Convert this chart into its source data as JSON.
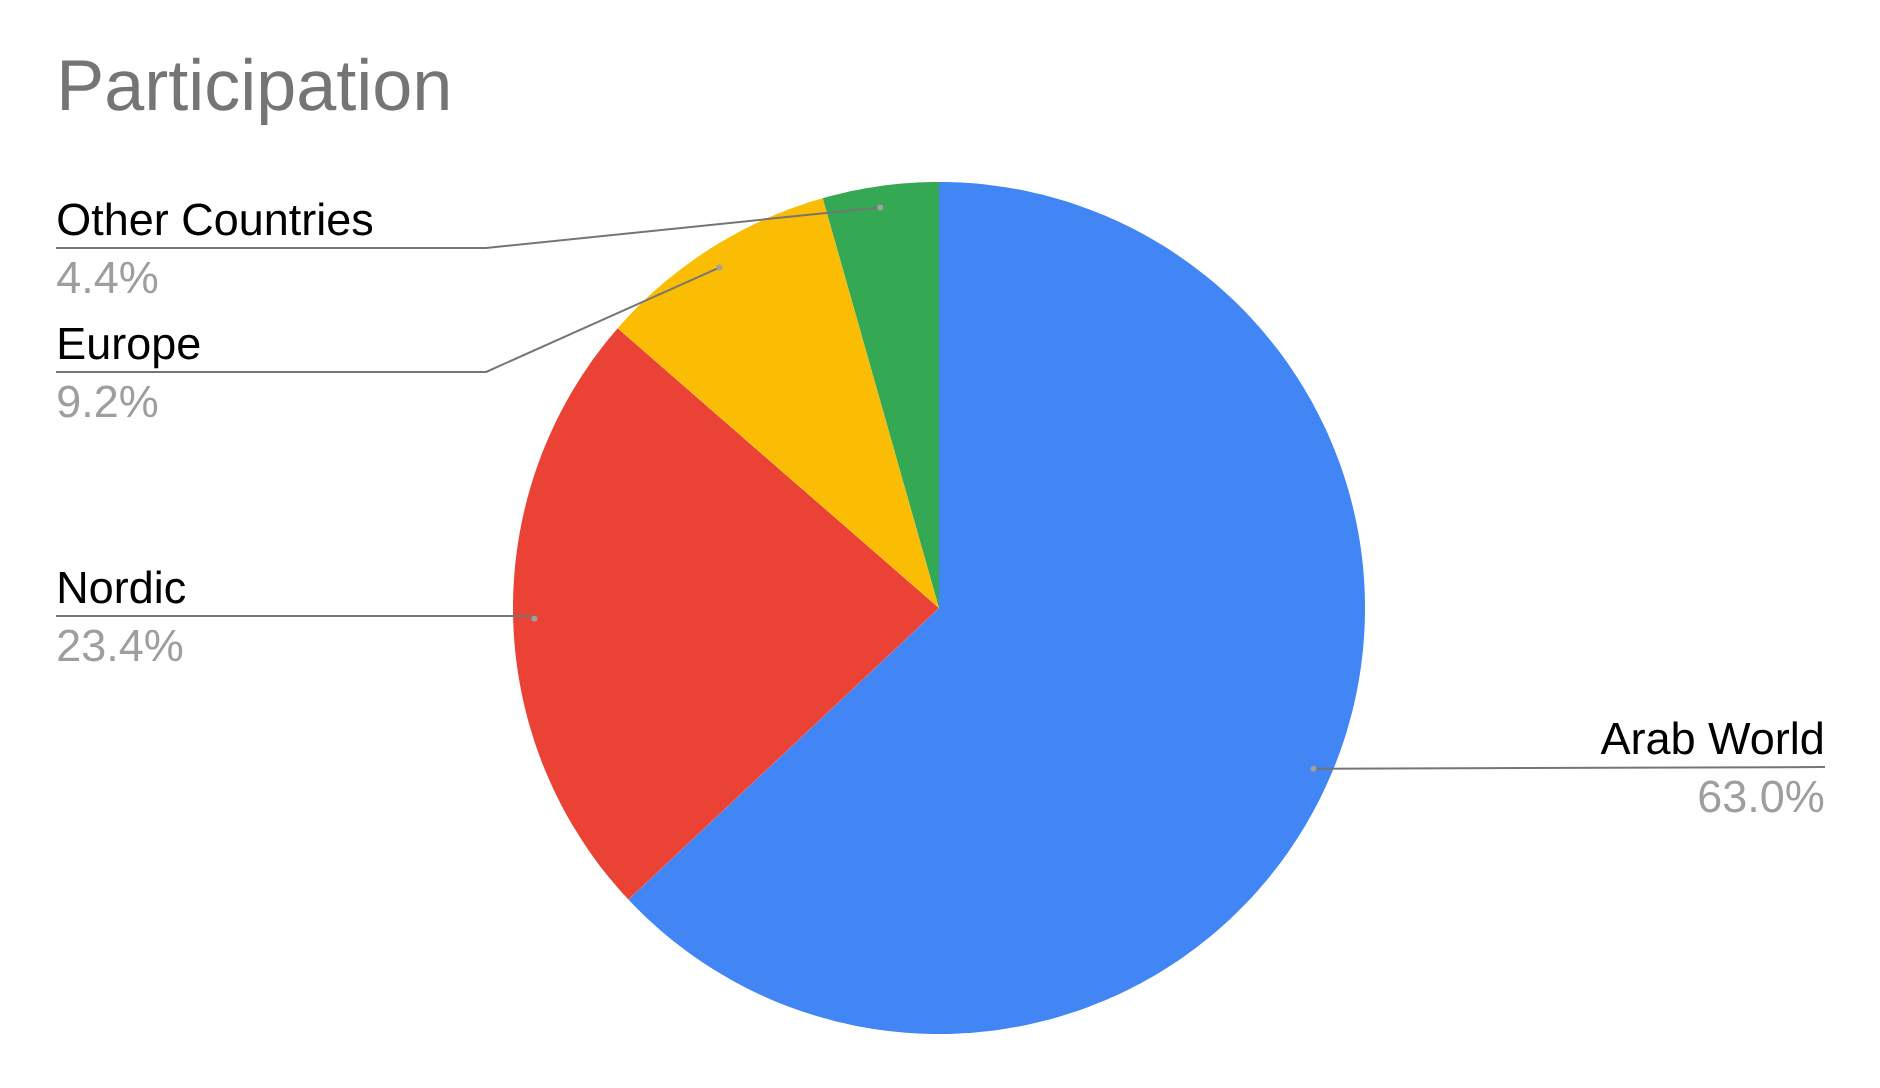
{
  "chart_data": {
    "type": "pie",
    "title": "Participation",
    "categories": [
      "Arab World",
      "Nordic",
      "Europe",
      "Other Countries"
    ],
    "values": [
      63.0,
      23.4,
      9.2,
      4.4
    ],
    "colors": [
      "#4285f4",
      "#ea4335",
      "#fbbc04",
      "#34a853"
    ],
    "value_labels": [
      "63.0%",
      "23.4%",
      "9.2%",
      "4.4%"
    ]
  }
}
